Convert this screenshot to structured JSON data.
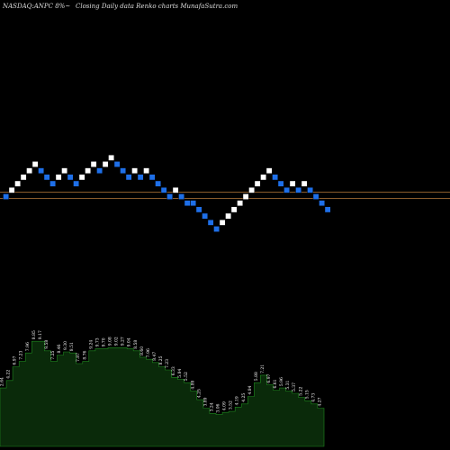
{
  "header": {
    "symbol": "NASDAQ:ANPC 8%~",
    "description": "Closing Daily data  Renko  charts MunafaSutra.com"
  },
  "chart_data": {
    "type": "renko",
    "colors": {
      "background": "#000000",
      "up_brick": "#ffffff",
      "down_brick": "#1e6fe8",
      "reference_line": "#b87a3a",
      "volume_fill": "#0a2a0a",
      "volume_line": "#1f8a1f"
    },
    "reference_lines": [
      1.0,
      0.0
    ],
    "bricks": [
      {
        "level": 0,
        "dir": "down"
      },
      {
        "level": 1,
        "dir": "up"
      },
      {
        "level": 2,
        "dir": "up"
      },
      {
        "level": 3,
        "dir": "up"
      },
      {
        "level": 4,
        "dir": "up"
      },
      {
        "level": 5,
        "dir": "up"
      },
      {
        "level": 4,
        "dir": "down"
      },
      {
        "level": 3,
        "dir": "down"
      },
      {
        "level": 2,
        "dir": "down"
      },
      {
        "level": 3,
        "dir": "up"
      },
      {
        "level": 4,
        "dir": "up"
      },
      {
        "level": 3,
        "dir": "down"
      },
      {
        "level": 2,
        "dir": "down"
      },
      {
        "level": 3,
        "dir": "up"
      },
      {
        "level": 4,
        "dir": "up"
      },
      {
        "level": 5,
        "dir": "up"
      },
      {
        "level": 4,
        "dir": "down"
      },
      {
        "level": 5,
        "dir": "up"
      },
      {
        "level": 6,
        "dir": "up"
      },
      {
        "level": 5,
        "dir": "down"
      },
      {
        "level": 4,
        "dir": "down"
      },
      {
        "level": 3,
        "dir": "down"
      },
      {
        "level": 4,
        "dir": "up"
      },
      {
        "level": 3,
        "dir": "down"
      },
      {
        "level": 4,
        "dir": "up"
      },
      {
        "level": 3,
        "dir": "down"
      },
      {
        "level": 2,
        "dir": "down"
      },
      {
        "level": 1,
        "dir": "down"
      },
      {
        "level": 0,
        "dir": "down"
      },
      {
        "level": 1,
        "dir": "up"
      },
      {
        "level": 0,
        "dir": "down"
      },
      {
        "level": -1,
        "dir": "down"
      },
      {
        "level": -1,
        "dir": "down"
      },
      {
        "level": -2,
        "dir": "down"
      },
      {
        "level": -3,
        "dir": "down"
      },
      {
        "level": -4,
        "dir": "down"
      },
      {
        "level": -5,
        "dir": "down"
      },
      {
        "level": -4,
        "dir": "up"
      },
      {
        "level": -3,
        "dir": "up"
      },
      {
        "level": -2,
        "dir": "up"
      },
      {
        "level": -1,
        "dir": "up"
      },
      {
        "level": 0,
        "dir": "up"
      },
      {
        "level": 1,
        "dir": "up"
      },
      {
        "level": 2,
        "dir": "up"
      },
      {
        "level": 3,
        "dir": "up"
      },
      {
        "level": 4,
        "dir": "up"
      },
      {
        "level": 3,
        "dir": "down"
      },
      {
        "level": 2,
        "dir": "down"
      },
      {
        "level": 1,
        "dir": "down"
      },
      {
        "level": 2,
        "dir": "up"
      },
      {
        "level": 1,
        "dir": "down"
      },
      {
        "level": 2,
        "dir": "up"
      },
      {
        "level": 1,
        "dir": "down"
      },
      {
        "level": 0,
        "dir": "down"
      },
      {
        "level": -1,
        "dir": "down"
      },
      {
        "level": -2,
        "dir": "down"
      }
    ],
    "volume": {
      "values": [
        0.55,
        0.62,
        0.75,
        0.8,
        0.88,
        0.99,
        0.99,
        0.9,
        0.8,
        0.86,
        0.89,
        0.88,
        0.78,
        0.8,
        0.9,
        0.92,
        0.92,
        0.93,
        0.93,
        0.93,
        0.92,
        0.9,
        0.84,
        0.82,
        0.79,
        0.75,
        0.72,
        0.65,
        0.63,
        0.6,
        0.52,
        0.44,
        0.36,
        0.31,
        0.3,
        0.32,
        0.33,
        0.37,
        0.4,
        0.47,
        0.6,
        0.67,
        0.58,
        0.53,
        0.55,
        0.52,
        0.5,
        0.46,
        0.43,
        0.4,
        0.36
      ],
      "labels": [
        "2.64",
        "4.22",
        "6.97",
        "7.23",
        "7.96",
        "8.85",
        "9.17",
        "9.58",
        "7.25",
        "8.46",
        "9.30",
        "8.51",
        "7.87",
        "8.76",
        "9.24",
        "9.73",
        "9.70",
        "9.08",
        "9.02",
        "9.27",
        "9.04",
        "8.58",
        "8.60",
        "7.96",
        "8.47",
        "8.25",
        "7.23",
        "6.33",
        "5.84",
        "5.52",
        "4.89",
        "4.25",
        "3.89",
        "3.24",
        "3.06",
        "4.09",
        "3.52",
        "4.19",
        "4.25",
        "4.84",
        "5.88",
        "7.21",
        "6.97",
        "6.61",
        "5.96",
        "5.31",
        "5.37",
        "5.22",
        "5.15",
        "4.73",
        "4.27"
      ]
    }
  }
}
